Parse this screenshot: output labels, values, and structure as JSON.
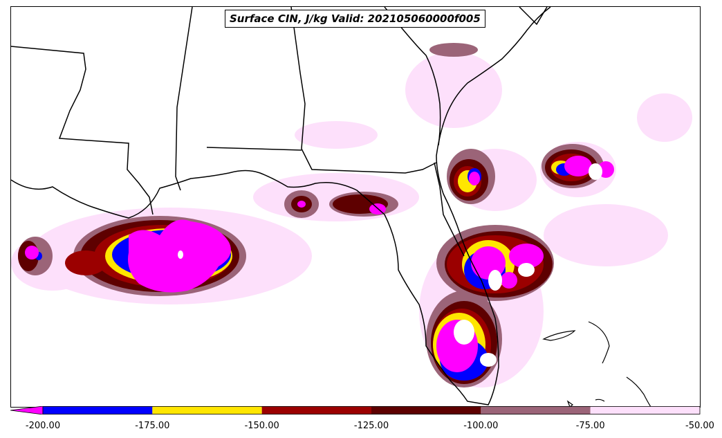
{
  "title": "Surface CIN, J/kg Valid: 202105060000f005",
  "colorbar": {
    "extend_color": "#ff00ff",
    "bins": [
      {
        "from": -200,
        "to": -175,
        "color": "#0000ff"
      },
      {
        "from": -175,
        "to": -150,
        "color": "#ffe600"
      },
      {
        "from": -150,
        "to": -125,
        "color": "#9b0000"
      },
      {
        "from": -125,
        "to": -100,
        "color": "#5e0000"
      },
      {
        "from": -100,
        "to": -75,
        "color": "#9b6478"
      },
      {
        "from": -75,
        "to": -50,
        "color": "#fde0fb"
      }
    ],
    "tick_labels": [
      "-200.00",
      "-175.00",
      "-150.00",
      "-125.00",
      "-100.00",
      "-75.00",
      "-50.00"
    ]
  },
  "map": {
    "fill_colors": {
      "magenta": "#ff00ff",
      "blue": "#0000ff",
      "yellow": "#ffe600",
      "red": "#9b0000",
      "darkred": "#5e0000",
      "mauve": "#9b6478",
      "pink": "#fde0fb"
    },
    "line_color": "#000000"
  }
}
